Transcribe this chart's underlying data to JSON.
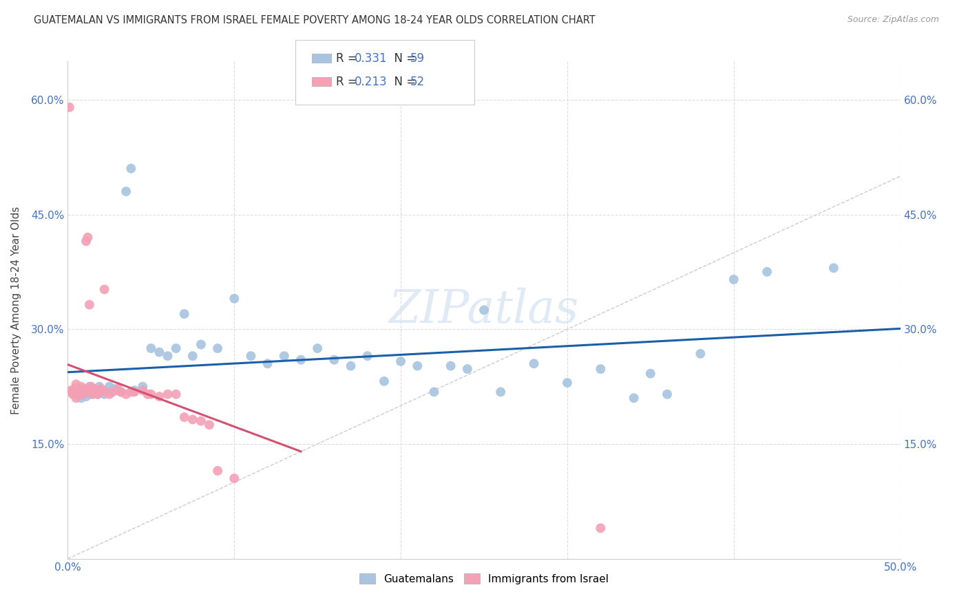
{
  "title": "GUATEMALAN VS IMMIGRANTS FROM ISRAEL FEMALE POVERTY AMONG 18-24 YEAR OLDS CORRELATION CHART",
  "source": "Source: ZipAtlas.com",
  "ylabel": "Female Poverty Among 18-24 Year Olds",
  "xlim": [
    0.0,
    0.5
  ],
  "ylim": [
    0.0,
    0.65
  ],
  "xticks": [
    0.0,
    0.05,
    0.1,
    0.15,
    0.2,
    0.25,
    0.3,
    0.35,
    0.4,
    0.45,
    0.5
  ],
  "xticklabels": [
    "0.0%",
    "",
    "",
    "",
    "",
    "",
    "",
    "",
    "",
    "",
    "50.0%"
  ],
  "yticks": [
    0.0,
    0.15,
    0.3,
    0.45,
    0.6
  ],
  "yticklabels": [
    "",
    "15.0%",
    "30.0%",
    "45.0%",
    "60.0%"
  ],
  "blue_color": "#a8c4e0",
  "pink_color": "#f4a0b5",
  "blue_line_color": "#1a5fa8",
  "pink_line_color": "#d45070",
  "ref_line_color": "#cccccc",
  "grid_color": "#dddddd",
  "background_color": "#ffffff",
  "watermark": "ZIPatlas",
  "blue_scatter_x": [
    0.005,
    0.006,
    0.007,
    0.008,
    0.009,
    0.01,
    0.011,
    0.012,
    0.013,
    0.014,
    0.015,
    0.016,
    0.018,
    0.019,
    0.02,
    0.022,
    0.025,
    0.028,
    0.03,
    0.032,
    0.035,
    0.038,
    0.04,
    0.045,
    0.05,
    0.055,
    0.06,
    0.065,
    0.07,
    0.075,
    0.08,
    0.09,
    0.1,
    0.11,
    0.12,
    0.13,
    0.14,
    0.15,
    0.16,
    0.17,
    0.18,
    0.19,
    0.2,
    0.21,
    0.22,
    0.23,
    0.24,
    0.25,
    0.26,
    0.28,
    0.3,
    0.32,
    0.34,
    0.35,
    0.36,
    0.38,
    0.4,
    0.42,
    0.46
  ],
  "blue_scatter_y": [
    0.22,
    0.215,
    0.218,
    0.21,
    0.222,
    0.218,
    0.212,
    0.22,
    0.225,
    0.215,
    0.218,
    0.22,
    0.215,
    0.225,
    0.22,
    0.215,
    0.225,
    0.222,
    0.22,
    0.218,
    0.48,
    0.51,
    0.22,
    0.225,
    0.275,
    0.27,
    0.265,
    0.275,
    0.32,
    0.265,
    0.28,
    0.275,
    0.34,
    0.265,
    0.255,
    0.265,
    0.26,
    0.275,
    0.26,
    0.252,
    0.265,
    0.232,
    0.258,
    0.252,
    0.218,
    0.252,
    0.248,
    0.325,
    0.218,
    0.255,
    0.23,
    0.248,
    0.21,
    0.242,
    0.215,
    0.268,
    0.365,
    0.375,
    0.38
  ],
  "pink_scatter_x": [
    0.001,
    0.002,
    0.003,
    0.003,
    0.004,
    0.004,
    0.005,
    0.005,
    0.006,
    0.006,
    0.007,
    0.007,
    0.008,
    0.008,
    0.009,
    0.009,
    0.01,
    0.01,
    0.011,
    0.012,
    0.013,
    0.013,
    0.014,
    0.015,
    0.015,
    0.016,
    0.017,
    0.018,
    0.019,
    0.02,
    0.022,
    0.023,
    0.025,
    0.027,
    0.03,
    0.032,
    0.035,
    0.038,
    0.04,
    0.045,
    0.048,
    0.05,
    0.055,
    0.06,
    0.065,
    0.07,
    0.075,
    0.08,
    0.085,
    0.09,
    0.1,
    0.32
  ],
  "pink_scatter_y": [
    0.59,
    0.22,
    0.215,
    0.218,
    0.222,
    0.215,
    0.228,
    0.21,
    0.218,
    0.215,
    0.222,
    0.218,
    0.215,
    0.225,
    0.22,
    0.215,
    0.218,
    0.222,
    0.415,
    0.42,
    0.22,
    0.332,
    0.225,
    0.215,
    0.218,
    0.222,
    0.218,
    0.215,
    0.218,
    0.222,
    0.352,
    0.218,
    0.215,
    0.218,
    0.222,
    0.218,
    0.215,
    0.218,
    0.218,
    0.22,
    0.215,
    0.215,
    0.212,
    0.215,
    0.215,
    0.185,
    0.182,
    0.18,
    0.175,
    0.115,
    0.105,
    0.04
  ]
}
